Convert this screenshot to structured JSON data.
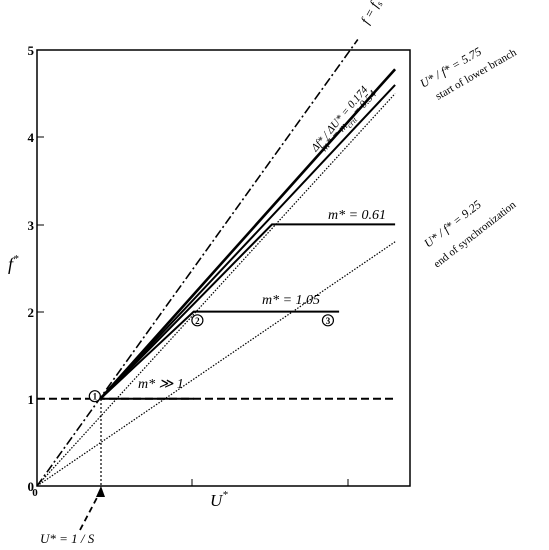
{
  "chart_data": {
    "type": "line",
    "xlabel": "U*",
    "ylabel": "f*",
    "ylim": [
      0,
      5
    ],
    "xlim_fraction_of_axis": [
      0,
      1
    ],
    "grid": false,
    "y_ticks": [
      "0",
      "1",
      "2",
      "3",
      "4",
      "5"
    ],
    "x_tick_count": 2,
    "colors": {
      "lines": "#000000",
      "background": "#ffffff"
    },
    "series": [
      {
        "name": "f = fs",
        "style": "dash-dot",
        "points": [
          [
            0,
            0
          ],
          [
            0.86,
            5.12
          ]
        ]
      },
      {
        "name": "Δf* / ΔU* = 0.174",
        "style": "solid-thick",
        "points": [
          [
            0.17,
            1.0
          ],
          [
            0.96,
            4.78
          ]
        ]
      },
      {
        "name": "m* = mcrit = 0.54",
        "style": "solid",
        "points": [
          [
            0.17,
            1.0
          ],
          [
            0.96,
            4.6
          ]
        ]
      },
      {
        "name": "U* / f* = 5.75",
        "style": "dotted",
        "points": [
          [
            0,
            0
          ],
          [
            0.96,
            4.5
          ]
        ]
      },
      {
        "name": "U* / f* = 9.25",
        "style": "dotted",
        "points": [
          [
            0,
            0
          ],
          [
            0.96,
            2.8
          ]
        ]
      },
      {
        "name": "m* = 0.61",
        "style": "solid",
        "points": [
          [
            0.17,
            1.0
          ],
          [
            0.63,
            3.0
          ],
          [
            0.96,
            3.0
          ]
        ]
      },
      {
        "name": "m* = 1.05",
        "style": "solid",
        "points": [
          [
            0.17,
            1.0
          ],
          [
            0.42,
            2.0
          ],
          [
            0.81,
            2.0
          ]
        ]
      },
      {
        "name": "m* ≫ 1",
        "style": "solid",
        "points": [
          [
            0.17,
            1.0
          ],
          [
            0.42,
            1.0
          ]
        ]
      },
      {
        "name": "f* = 1",
        "style": "dashed",
        "points": [
          [
            0,
            1.0
          ],
          [
            0.96,
            1.0
          ]
        ]
      }
    ],
    "markers": [
      {
        "label": "1",
        "x": 0.155,
        "y": 1.03
      },
      {
        "label": "2",
        "x": 0.43,
        "y": 1.9
      },
      {
        "label": "3",
        "x": 0.78,
        "y": 1.9
      }
    ]
  },
  "labels": {
    "ylabel_f": "f",
    "ylabel_star": "*",
    "xlabel_u": "U",
    "xlabel_star": "*",
    "origin": "0",
    "fs_label": "f = f",
    "fs_sub": "s",
    "slope_label": "Δf* / ΔU* = 0.174",
    "mcrit_label": "m* = m",
    "mcrit_sub": "crit",
    "mcrit_value": " = 0.54",
    "uf575_label": "U* / f* = 5.75",
    "uf575_note": "start of lower branch",
    "uf925_label": "U* / f* = 9.25",
    "uf925_note": "end of synchronization",
    "m061_label": "m* = 0.61",
    "m105_label": "m* = 1.05",
    "mgg1_label": "m* ≫ 1",
    "us_label": "U* = 1 / S"
  }
}
